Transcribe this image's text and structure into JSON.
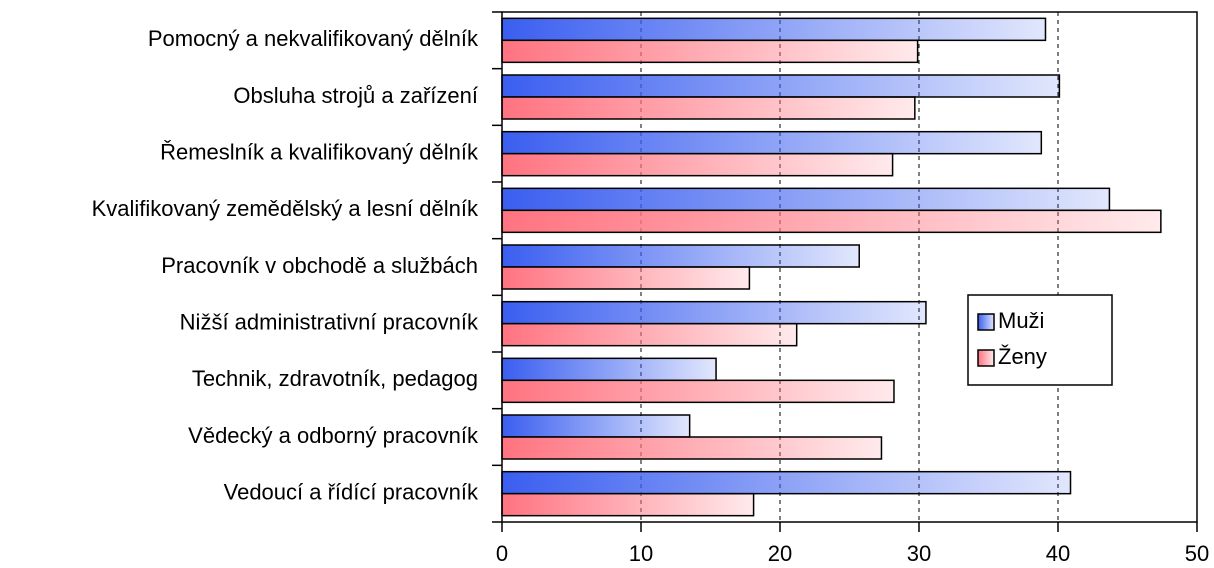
{
  "chart_data": {
    "type": "barh",
    "categories": [
      "Pomocný a nekvalifikovaný dělník",
      "Obsluha strojů a zařízení",
      "Řemeslník a kvalifikovaný dělník",
      "Kvalifikovaný zemědělský a lesní dělník",
      "Pracovník v obchodě a službách",
      "Nižší administrativní pracovník",
      "Technik, zdravotník, pedagog",
      "Vědecký a odborný pracovník",
      "Vedoucí a řídící pracovník"
    ],
    "series": [
      {
        "name": "Muži",
        "color": "#3a5ef0",
        "values": [
          39.1,
          40.1,
          38.8,
          43.7,
          25.7,
          30.5,
          15.4,
          13.5,
          40.9
        ]
      },
      {
        "name": "Ženy",
        "color": "#ff7380",
        "values": [
          29.9,
          29.7,
          28.1,
          47.4,
          17.8,
          21.2,
          28.2,
          27.3,
          18.1
        ]
      }
    ],
    "xlim": [
      0,
      50
    ],
    "xticks": [
      0,
      10,
      20,
      30,
      40,
      50
    ],
    "grid": true,
    "legend": "right"
  }
}
